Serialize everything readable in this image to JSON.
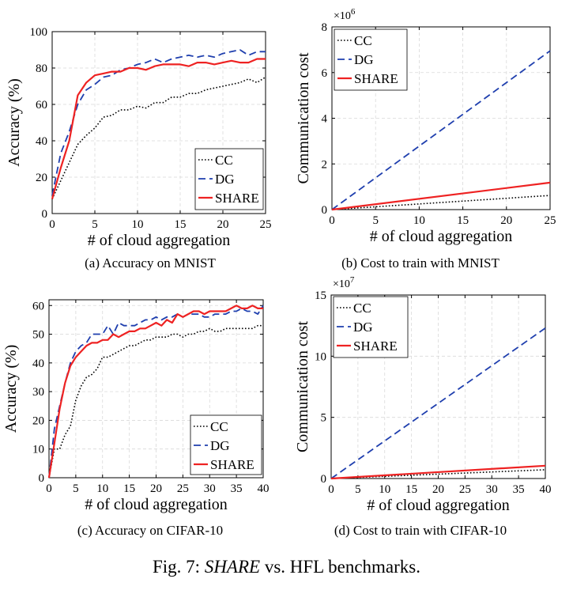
{
  "figure_caption": {
    "label": "Fig. 7:",
    "italic": "SHARE",
    "rest": "vs. HFL benchmarks."
  },
  "subcaptions": [
    "(a) Accuracy on MNIST",
    "(b) Cost to train with MNIST",
    "(c) Accuracy on CIFAR-10",
    "(d) Cost to train with CIFAR-10"
  ],
  "colors": {
    "CC": "#000000",
    "DG": "#1f3fae",
    "SHARE": "#ee2222",
    "grid": "#d9d9d9"
  },
  "chart_data": [
    {
      "type": "line",
      "xlabel": "# of cloud aggregation",
      "ylabel": "Accuracy (%)",
      "xlim": [
        0,
        25
      ],
      "ylim": [
        0,
        100
      ],
      "xticks": [
        0,
        5,
        10,
        15,
        20,
        25
      ],
      "yticks": [
        0,
        20,
        40,
        60,
        80,
        100
      ],
      "grid": true,
      "legend_position": "bottom-right",
      "series": [
        {
          "name": "CC",
          "style": "dotted",
          "x": [
            0,
            1,
            2,
            3,
            4,
            5,
            6,
            7,
            8,
            9,
            10,
            11,
            12,
            13,
            14,
            15,
            16,
            17,
            18,
            19,
            20,
            21,
            22,
            23,
            24,
            25
          ],
          "y": [
            8,
            18,
            28,
            38,
            43,
            47,
            53,
            54,
            57,
            57,
            59,
            58,
            61,
            61,
            64,
            64,
            66,
            66,
            68,
            69,
            70,
            71,
            72,
            74,
            72,
            75
          ]
        },
        {
          "name": "DG",
          "style": "dashed",
          "x": [
            0,
            1,
            2,
            3,
            4,
            5,
            6,
            7,
            8,
            9,
            10,
            11,
            12,
            13,
            14,
            15,
            16,
            17,
            18,
            19,
            20,
            21,
            22,
            23,
            24,
            25
          ],
          "y": [
            10,
            33,
            45,
            60,
            68,
            71,
            75,
            76,
            79,
            80,
            82,
            83,
            85,
            83,
            85,
            86,
            87,
            86,
            87,
            86,
            88,
            89,
            90,
            87,
            89,
            89
          ]
        },
        {
          "name": "SHARE",
          "style": "solid",
          "x": [
            0,
            1,
            2,
            3,
            4,
            5,
            6,
            7,
            8,
            9,
            10,
            11,
            12,
            13,
            14,
            15,
            16,
            17,
            18,
            19,
            20,
            21,
            22,
            23,
            24,
            25
          ],
          "y": [
            8,
            25,
            40,
            65,
            72,
            76,
            77,
            78,
            78,
            80,
            80,
            79,
            81,
            82,
            82,
            82,
            81,
            83,
            83,
            82,
            83,
            84,
            83,
            83,
            85,
            85
          ]
        }
      ]
    },
    {
      "type": "line",
      "xlabel": "# of cloud aggregation",
      "ylabel": "Communication cost",
      "multiplier": "×10",
      "multiplier_exp": "6",
      "xlim": [
        0,
        25
      ],
      "ylim": [
        0,
        8
      ],
      "xticks": [
        0,
        5,
        10,
        15,
        20,
        25
      ],
      "yticks": [
        0,
        2,
        4,
        6,
        8
      ],
      "grid": true,
      "legend_position": "top-left",
      "series": [
        {
          "name": "CC",
          "style": "dotted",
          "x": [
            0,
            25
          ],
          "y": [
            0,
            0.62
          ]
        },
        {
          "name": "DG",
          "style": "dashed",
          "x": [
            0,
            25
          ],
          "y": [
            0,
            6.95
          ]
        },
        {
          "name": "SHARE",
          "style": "solid",
          "x": [
            0,
            25
          ],
          "y": [
            0,
            1.18
          ]
        }
      ]
    },
    {
      "type": "line",
      "xlabel": "# of cloud aggregation",
      "ylabel": "Accuracy (%)",
      "xlim": [
        0,
        40
      ],
      "ylim": [
        0,
        62
      ],
      "xticks": [
        0,
        5,
        10,
        15,
        20,
        25,
        30,
        35,
        40
      ],
      "yticks": [
        0,
        10,
        20,
        30,
        40,
        50,
        60
      ],
      "grid": true,
      "legend_position": "bottom-right",
      "series": [
        {
          "name": "CC",
          "style": "dotted",
          "x": [
            0,
            1,
            2,
            3,
            4,
            5,
            6,
            7,
            8,
            9,
            10,
            11,
            12,
            13,
            14,
            15,
            16,
            17,
            18,
            19,
            20,
            21,
            22,
            23,
            24,
            25,
            26,
            27,
            28,
            29,
            30,
            31,
            32,
            33,
            34,
            35,
            36,
            37,
            38,
            39,
            40
          ],
          "y": [
            0,
            10,
            10,
            15,
            18,
            27,
            32,
            35,
            36,
            38,
            42,
            42,
            43,
            44,
            45,
            46,
            46,
            47,
            48,
            48,
            49,
            49,
            49,
            50,
            50,
            49,
            50,
            50,
            51,
            51,
            52,
            51,
            51,
            52,
            52,
            52,
            52,
            52,
            52,
            53,
            53
          ]
        },
        {
          "name": "DG",
          "style": "dashed",
          "x": [
            0,
            1,
            2,
            3,
            4,
            5,
            6,
            7,
            8,
            9,
            10,
            11,
            12,
            13,
            14,
            15,
            16,
            17,
            18,
            19,
            20,
            21,
            22,
            23,
            24,
            25,
            26,
            27,
            28,
            29,
            30,
            31,
            32,
            33,
            34,
            35,
            36,
            37,
            38,
            39,
            40
          ],
          "y": [
            0,
            17,
            25,
            33,
            40,
            44,
            46,
            47,
            50,
            50,
            50,
            53,
            50,
            54,
            53,
            53,
            53,
            54,
            55,
            55,
            56,
            55,
            56,
            56,
            57,
            56,
            57,
            57,
            57,
            56,
            56,
            57,
            57,
            57,
            58,
            58,
            59,
            58,
            58,
            57,
            60
          ]
        },
        {
          "name": "SHARE",
          "style": "solid",
          "x": [
            0,
            1,
            2,
            3,
            4,
            5,
            6,
            7,
            8,
            9,
            10,
            11,
            12,
            13,
            14,
            15,
            16,
            17,
            18,
            19,
            20,
            21,
            22,
            23,
            24,
            25,
            26,
            27,
            28,
            29,
            30,
            31,
            32,
            33,
            34,
            35,
            36,
            37,
            38,
            39,
            40
          ],
          "y": [
            0,
            12,
            24,
            33,
            39,
            42,
            44,
            46,
            47,
            47,
            48,
            48,
            50,
            49,
            50,
            51,
            51,
            52,
            52,
            53,
            54,
            53,
            55,
            54,
            57,
            56,
            57,
            58,
            58,
            57,
            58,
            58,
            58,
            58,
            59,
            60,
            59,
            59,
            60,
            59,
            59
          ]
        }
      ]
    },
    {
      "type": "line",
      "xlabel": "# of cloud aggregation",
      "ylabel": "Communication cost",
      "multiplier": "×10",
      "multiplier_exp": "7",
      "xlim": [
        0,
        40
      ],
      "ylim": [
        0,
        15
      ],
      "xticks": [
        0,
        5,
        10,
        15,
        20,
        25,
        30,
        35,
        40
      ],
      "yticks": [
        0,
        5,
        10,
        15
      ],
      "grid": true,
      "legend_position": "top-left",
      "series": [
        {
          "name": "CC",
          "style": "dotted",
          "x": [
            0,
            40
          ],
          "y": [
            0,
            0.72
          ]
        },
        {
          "name": "DG",
          "style": "dashed",
          "x": [
            0,
            40
          ],
          "y": [
            0,
            12.3
          ]
        },
        {
          "name": "SHARE",
          "style": "solid",
          "x": [
            0,
            40
          ],
          "y": [
            0,
            1.05
          ]
        }
      ]
    }
  ]
}
